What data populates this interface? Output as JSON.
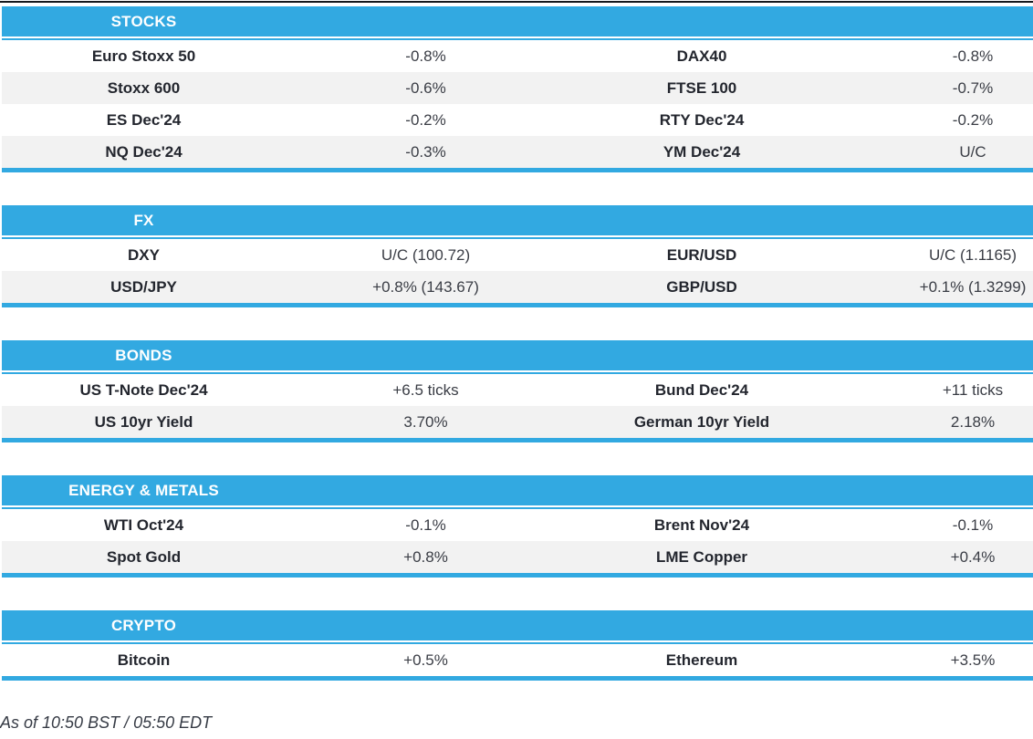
{
  "colors": {
    "accent": "#32A9E1",
    "alt_row": "#F2F2F2",
    "top_line": "#15181D"
  },
  "sections": [
    {
      "title": "STOCKS",
      "rows": [
        {
          "name1": "Euro Stoxx 50",
          "value1": "-0.8%",
          "name2": "DAX40",
          "value2": "-0.8%"
        },
        {
          "name1": "Stoxx 600",
          "value1": "-0.6%",
          "name2": "FTSE 100",
          "value2": "-0.7%"
        },
        {
          "name1": "ES Dec'24",
          "value1": "-0.2%",
          "name2": "RTY Dec'24",
          "value2": "-0.2%"
        },
        {
          "name1": "NQ Dec'24",
          "value1": "-0.3%",
          "name2": "YM Dec'24",
          "value2": "U/C"
        }
      ]
    },
    {
      "title": "FX",
      "rows": [
        {
          "name1": "DXY",
          "value1": "U/C (100.72)",
          "name2": "EUR/USD",
          "value2": "U/C (1.1165)"
        },
        {
          "name1": "USD/JPY",
          "value1": "+0.8% (143.67)",
          "name2": "GBP/USD",
          "value2": "+0.1% (1.3299)"
        }
      ]
    },
    {
      "title": "BONDS",
      "rows": [
        {
          "name1": "US T-Note Dec'24",
          "value1": "+6.5 ticks",
          "name2": "Bund Dec'24",
          "value2": "+11 ticks"
        },
        {
          "name1": "US 10yr Yield",
          "value1": "3.70%",
          "name2": "German 10yr Yield",
          "value2": "2.18%"
        }
      ]
    },
    {
      "title": "ENERGY & METALS",
      "rows": [
        {
          "name1": "WTI Oct'24",
          "value1": "-0.1%",
          "name2": "Brent Nov'24",
          "value2": "-0.1%"
        },
        {
          "name1": "Spot Gold",
          "value1": "+0.8%",
          "name2": "LME Copper",
          "value2": "+0.4%"
        }
      ]
    },
    {
      "title": "CRYPTO",
      "rows": [
        {
          "name1": "Bitcoin",
          "value1": "+0.5%",
          "name2": "Ethereum",
          "value2": "+3.5%"
        }
      ]
    }
  ],
  "footer": {
    "text": "As of 10:50 BST / 05:50 EDT"
  }
}
